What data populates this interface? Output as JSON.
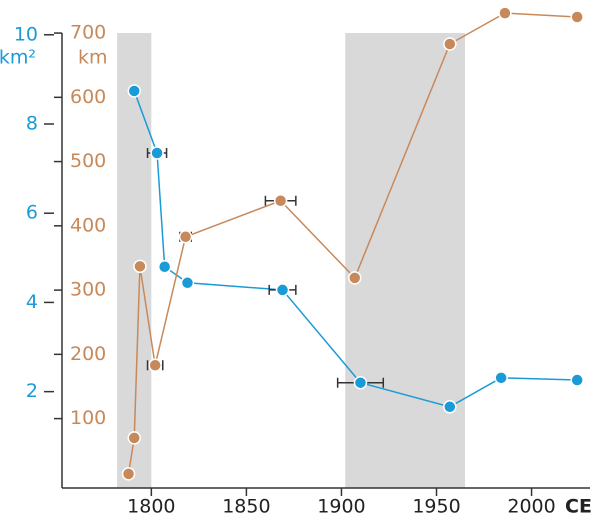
{
  "chart_data": {
    "type": "line",
    "xlim": [
      1753,
      2036
    ],
    "xticks": [
      1800,
      1850,
      1900,
      1950,
      2000
    ],
    "x_unit": "CE",
    "ylim": [
      -0.16,
      10.6
    ],
    "yticks": [
      2,
      4,
      6,
      8,
      10
    ],
    "y_unit": "km²",
    "y2lim": [
      -8,
      739
    ],
    "y2ticks": [
      100,
      200,
      300,
      400,
      500,
      600,
      700
    ],
    "y2_unit": "km",
    "shaded_spans": [
      [
        1782,
        1800
      ],
      [
        1902,
        1965
      ]
    ],
    "shade_color": "#d9d9d9",
    "series": [
      {
        "color": "#1a9ad6",
        "axis": "y",
        "x": [
          1791,
          1803,
          1807,
          1819,
          1869,
          1910,
          1957,
          1984,
          2024
        ],
        "values": [
          8.74,
          7.35,
          4.8,
          4.44,
          4.28,
          2.2,
          1.66,
          2.31,
          2.26
        ],
        "xerr": [
          null,
          5,
          null,
          null,
          7,
          12,
          null,
          null,
          null
        ]
      },
      {
        "color": "#c8895a",
        "axis": "y2",
        "x": [
          1788,
          1791,
          1794,
          1802,
          1818,
          1868,
          1907,
          1957,
          1986,
          2024
        ],
        "values": [
          14,
          70,
          337,
          183,
          383,
          439,
          319,
          683,
          731,
          725
        ],
        "xerr": [
          null,
          null,
          null,
          4,
          3,
          8,
          null,
          null,
          null,
          null
        ]
      }
    ]
  }
}
